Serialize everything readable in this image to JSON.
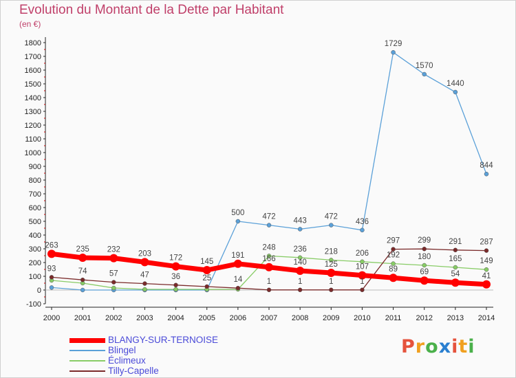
{
  "header": {
    "title": "Evolution du Montant de la Dette par Habitant",
    "unit": "(en €)"
  },
  "logo": {
    "text": "Proxiti",
    "colors": [
      "#e5533d",
      "#f0a020",
      "#4ab04a",
      "#2a7fd0"
    ]
  },
  "chart_data": {
    "type": "line",
    "title": "Evolution du Montant de la Dette par Habitant",
    "ylabel": "(en €)",
    "ylim": [
      -100,
      1800
    ],
    "yticks": [
      -100,
      0,
      100,
      200,
      300,
      400,
      500,
      600,
      700,
      800,
      900,
      1000,
      1100,
      1200,
      1300,
      1400,
      1500,
      1600,
      1700,
      1800
    ],
    "x": [
      "2000",
      "2001",
      "2002",
      "2003",
      "2004",
      "2005",
      "2006",
      "2007",
      "2008",
      "2009",
      "2010",
      "2011",
      "2012",
      "2013",
      "2014"
    ],
    "grid": false,
    "legend_position": "bottom-left",
    "series": [
      {
        "name": "BLANGY-SUR-TERNOISE",
        "color": "#ff0000",
        "values": [
          263,
          235,
          232,
          203,
          172,
          145,
          191,
          166,
          140,
          125,
          107,
          89,
          69,
          54,
          41
        ]
      },
      {
        "name": "Blingel",
        "color": "#5aa0d8",
        "values": [
          18,
          0,
          0,
          0,
          0,
          0,
          500,
          472,
          443,
          472,
          436,
          1729,
          1570,
          1440,
          844
        ]
      },
      {
        "name": "Éclimeux",
        "color": "#88cc66",
        "values": [
          70,
          50,
          15,
          5,
          5,
          5,
          5,
          248,
          236,
          218,
          206,
          192,
          180,
          165,
          149
        ]
      },
      {
        "name": "Tilly-Capelle",
        "color": "#7a2a2a",
        "values": [
          93,
          74,
          57,
          47,
          36,
          25,
          14,
          1,
          1,
          1,
          1,
          297,
          299,
          291,
          287
        ]
      }
    ],
    "labels": [
      {
        "series": 0,
        "i": 0,
        "text": "263"
      },
      {
        "series": 0,
        "i": 1,
        "text": "235"
      },
      {
        "series": 0,
        "i": 2,
        "text": "232"
      },
      {
        "series": 0,
        "i": 3,
        "text": "203"
      },
      {
        "series": 0,
        "i": 4,
        "text": "172"
      },
      {
        "series": 0,
        "i": 5,
        "text": "145"
      },
      {
        "series": 0,
        "i": 6,
        "text": "191"
      },
      {
        "series": 0,
        "i": 7,
        "text": "166"
      },
      {
        "series": 0,
        "i": 8,
        "text": "140"
      },
      {
        "series": 0,
        "i": 9,
        "text": "125"
      },
      {
        "series": 0,
        "i": 10,
        "text": "107"
      },
      {
        "series": 0,
        "i": 11,
        "text": "89"
      },
      {
        "series": 0,
        "i": 12,
        "text": "69"
      },
      {
        "series": 0,
        "i": 13,
        "text": "54"
      },
      {
        "series": 0,
        "i": 14,
        "text": "41"
      },
      {
        "series": 1,
        "i": 6,
        "text": "500"
      },
      {
        "series": 1,
        "i": 7,
        "text": "472"
      },
      {
        "series": 1,
        "i": 8,
        "text": "443"
      },
      {
        "series": 1,
        "i": 9,
        "text": "472"
      },
      {
        "series": 1,
        "i": 10,
        "text": "436"
      },
      {
        "series": 1,
        "i": 11,
        "text": "1729"
      },
      {
        "series": 1,
        "i": 12,
        "text": "1570"
      },
      {
        "series": 1,
        "i": 13,
        "text": "1440"
      },
      {
        "series": 1,
        "i": 14,
        "text": "844"
      },
      {
        "series": 2,
        "i": 7,
        "text": "248"
      },
      {
        "series": 2,
        "i": 8,
        "text": "236"
      },
      {
        "series": 2,
        "i": 9,
        "text": "218"
      },
      {
        "series": 2,
        "i": 10,
        "text": "206"
      },
      {
        "series": 2,
        "i": 11,
        "text": "192"
      },
      {
        "series": 2,
        "i": 12,
        "text": "180"
      },
      {
        "series": 2,
        "i": 13,
        "text": "165"
      },
      {
        "series": 2,
        "i": 14,
        "text": "149"
      },
      {
        "series": 3,
        "i": 0,
        "text": "93"
      },
      {
        "series": 3,
        "i": 1,
        "text": "74"
      },
      {
        "series": 3,
        "i": 2,
        "text": "57"
      },
      {
        "series": 3,
        "i": 3,
        "text": "47"
      },
      {
        "series": 3,
        "i": 4,
        "text": "36"
      },
      {
        "series": 3,
        "i": 5,
        "text": "25"
      },
      {
        "series": 3,
        "i": 6,
        "text": "14"
      },
      {
        "series": 3,
        "i": 7,
        "text": "1"
      },
      {
        "series": 3,
        "i": 8,
        "text": "1"
      },
      {
        "series": 3,
        "i": 9,
        "text": "1"
      },
      {
        "series": 3,
        "i": 10,
        "text": "1"
      },
      {
        "series": 3,
        "i": 11,
        "text": "297"
      },
      {
        "series": 3,
        "i": 12,
        "text": "299"
      },
      {
        "series": 3,
        "i": 13,
        "text": "291"
      },
      {
        "series": 3,
        "i": 14,
        "text": "287"
      }
    ]
  }
}
